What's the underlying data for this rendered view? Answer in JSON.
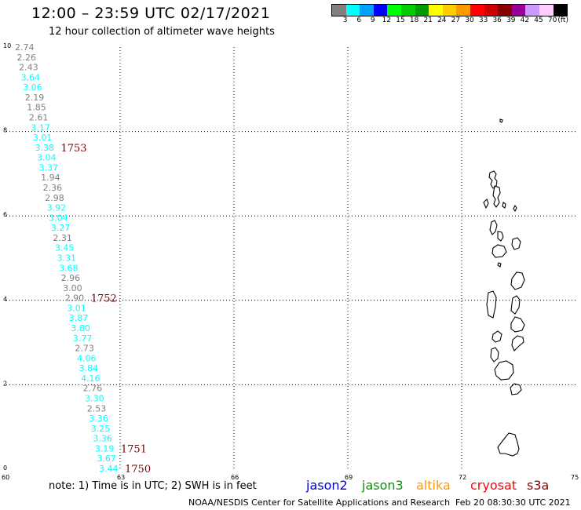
{
  "header": {
    "title": "12:00 – 23:59 UTC 02/17/2021",
    "subtitle": "12 hour collection of altimeter wave heights"
  },
  "color_scale": {
    "colors": [
      "#808080",
      "#00ffff",
      "#00a0ff",
      "#0000ff",
      "#00ff00",
      "#00cc00",
      "#009900",
      "#ffff00",
      "#ffcc00",
      "#ff9900",
      "#ff0000",
      "#cc0000",
      "#880000",
      "#990099",
      "#cc99ff",
      "#ffccff",
      "#000000"
    ],
    "labels": [
      "3",
      "6",
      "9",
      "12",
      "15",
      "18",
      "21",
      "24",
      "27",
      "30",
      "33",
      "36",
      "39",
      "42",
      "45",
      "70",
      "(ft)"
    ]
  },
  "map": {
    "lon_range": [
      60,
      75
    ],
    "lat_range": [
      0,
      10
    ],
    "lon_ticks": [
      "60",
      "63",
      "66",
      "69",
      "72",
      "75"
    ],
    "lat_ticks": [
      "0",
      "2",
      "4",
      "6",
      "8",
      "10"
    ],
    "grid_lons": [
      63,
      66,
      69,
      72
    ],
    "grid_lats": [
      2,
      4,
      6,
      8
    ]
  },
  "track_points": [
    {
      "v": "2.74",
      "c": "#808080"
    },
    {
      "v": "2.26",
      "c": "#808080"
    },
    {
      "v": "2.43",
      "c": "#808080"
    },
    {
      "v": "3.64",
      "c": "#00ffff"
    },
    {
      "v": "3.06",
      "c": "#00ffff"
    },
    {
      "v": "2.19",
      "c": "#808080"
    },
    {
      "v": "1.85",
      "c": "#808080"
    },
    {
      "v": "2.61",
      "c": "#808080"
    },
    {
      "v": "3.17",
      "c": "#00ffff"
    },
    {
      "v": "3.01",
      "c": "#00ffff"
    },
    {
      "v": "3.38",
      "c": "#00ffff"
    },
    {
      "v": "3.04",
      "c": "#00ffff"
    },
    {
      "v": "3.37",
      "c": "#00ffff"
    },
    {
      "v": "1.94",
      "c": "#808080"
    },
    {
      "v": "2.36",
      "c": "#808080"
    },
    {
      "v": "2.98",
      "c": "#808080"
    },
    {
      "v": "3.92",
      "c": "#00ffff"
    },
    {
      "v": "3.04",
      "c": "#00ffff"
    },
    {
      "v": "3.27",
      "c": "#00ffff"
    },
    {
      "v": "2.31",
      "c": "#808080"
    },
    {
      "v": "3.45",
      "c": "#00ffff"
    },
    {
      "v": "3.31",
      "c": "#00ffff"
    },
    {
      "v": "3.68",
      "c": "#00ffff"
    },
    {
      "v": "2.96",
      "c": "#808080"
    },
    {
      "v": "3.00",
      "c": "#808080"
    },
    {
      "v": "2.90",
      "c": "#808080"
    },
    {
      "v": "3.01",
      "c": "#00ffff"
    },
    {
      "v": "3.87",
      "c": "#00ffff"
    },
    {
      "v": "3.80",
      "c": "#00ffff"
    },
    {
      "v": "3.77",
      "c": "#00ffff"
    },
    {
      "v": "2.73",
      "c": "#808080"
    },
    {
      "v": "4.06",
      "c": "#00ffff"
    },
    {
      "v": "3.84",
      "c": "#00ffff"
    },
    {
      "v": "4.16",
      "c": "#00ffff"
    },
    {
      "v": "2.76",
      "c": "#808080"
    },
    {
      "v": "3.30",
      "c": "#00ffff"
    },
    {
      "v": "2.53",
      "c": "#808080"
    },
    {
      "v": "3.36",
      "c": "#00ffff"
    },
    {
      "v": "3.25",
      "c": "#00ffff"
    },
    {
      "v": "3.36",
      "c": "#00ffff"
    },
    {
      "v": "3.19",
      "c": "#00ffff"
    },
    {
      "v": "3.67",
      "c": "#00ffff"
    },
    {
      "v": "3.44",
      "c": "#00ffff"
    }
  ],
  "time_labels": [
    {
      "text": "1753",
      "row": 10
    },
    {
      "text": "1752",
      "row": 25
    },
    {
      "text": "1751",
      "row": 40
    },
    {
      "text": "1750",
      "row": 42
    }
  ],
  "note": "note:  1) Time is in UTC;  2) SWH is in feet",
  "satellites": [
    {
      "name": "jason2",
      "color": "#0000cc"
    },
    {
      "name": "jason3",
      "color": "#009900"
    },
    {
      "name": "altika",
      "color": "#ff9900"
    },
    {
      "name": "cryosat",
      "color": "#ff0000"
    },
    {
      "name": "s3a",
      "color": "#8b0000"
    }
  ],
  "footer": {
    "agency": "NOAA/NESDIS Center for Satellite Applications and Research",
    "generated": "Feb 20 08:30:30 UTC 2021"
  }
}
